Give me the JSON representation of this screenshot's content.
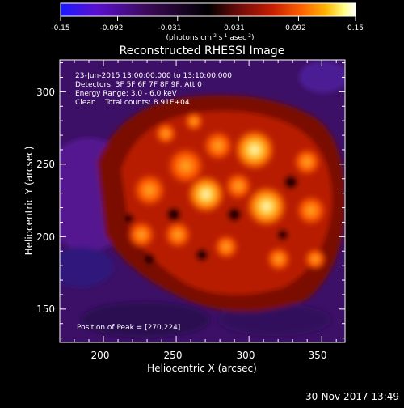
{
  "colorbar": {
    "ticks": [
      "-0.15",
      "-0.092",
      "-0.031",
      "0.031",
      "0.092",
      "0.15"
    ],
    "tick_values": [
      -0.15,
      -0.092,
      -0.031,
      0.031,
      0.092,
      0.15
    ],
    "range": [
      -0.15,
      0.15
    ],
    "unit_label": "(photons cm",
    "unit_sup1": "-2",
    "unit_mid": " s",
    "unit_sup2": "-1",
    "unit_mid2": " asec",
    "unit_sup3": "-2",
    "unit_end": ")",
    "colors": [
      "#1a1aff",
      "#5a10d0",
      "#3a0a55",
      "#000000",
      "#6a0a0a",
      "#c81e00",
      "#ff6400",
      "#ffb400",
      "#ffff80",
      "#ffffff"
    ]
  },
  "plot": {
    "title": "Reconstructed RHESSI Image",
    "annotations": [
      "23-Jun-2015 13:00:00.000 to 13:10:00.000",
      "Detectors: 3F 5F 6F 7F 8F 9F, Att 0",
      "Energy Range: 3.0 - 6.0 keV",
      "Clean    Total counts: 8.91E+04"
    ],
    "peak_label": "Position of Peak = [270,224]",
    "xlabel": "Heliocentric X (arcsec)",
    "ylabel": "Heliocentric Y (arcsec)",
    "xticks": [
      "200",
      "250",
      "300",
      "350"
    ],
    "xtick_values": [
      200,
      250,
      300,
      350
    ],
    "yticks": [
      "150",
      "200",
      "250",
      "300"
    ],
    "ytick_values": [
      150,
      200,
      250,
      300
    ],
    "xlim": [
      170,
      366
    ],
    "ylim": [
      127,
      322
    ]
  },
  "footer": {
    "timestamp": "30-Nov-2017 13:49"
  }
}
